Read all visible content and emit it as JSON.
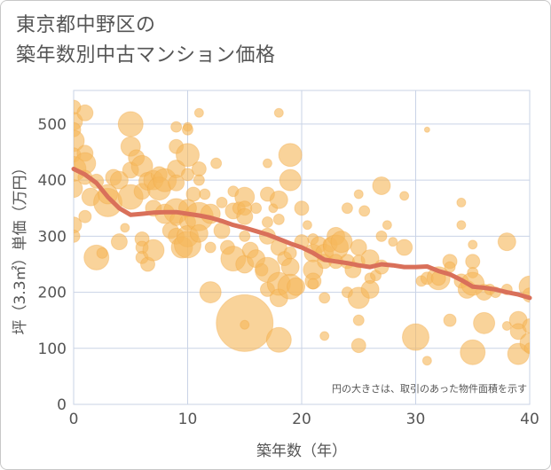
{
  "title_line1": "東京都中野区の",
  "title_line2": "築年数別中古マンション価格",
  "colors": {
    "bubble": "#f5b85c",
    "trend": "#d9705a",
    "grid": "#c9d3e6",
    "text": "#555555"
  },
  "chart_data": {
    "type": "scatter",
    "title": "東京都中野区の築年数別中古マンション価格",
    "xlabel": "築年数（年）",
    "ylabel": "坪（3.3㎡）単価（万円）",
    "xlim": [
      0,
      40
    ],
    "ylim": [
      0,
      560
    ],
    "xticks": [
      "0",
      "10",
      "20",
      "30",
      "40"
    ],
    "yticks": [
      "0",
      "100",
      "200",
      "300",
      "400",
      "500"
    ],
    "note": "円の大きさは、取引のあった物件面積を示す",
    "trend": {
      "x": [
        0,
        1,
        2,
        3,
        4,
        5,
        6,
        7,
        8,
        9,
        10,
        11,
        12,
        13,
        14,
        15,
        16,
        17,
        18,
        19,
        20,
        21,
        22,
        23,
        24,
        25,
        26,
        27,
        28,
        29,
        30,
        31,
        32,
        33,
        34,
        35,
        36,
        37,
        38,
        39,
        40
      ],
      "y": [
        420,
        410,
        395,
        370,
        350,
        338,
        340,
        342,
        343,
        343,
        340,
        337,
        333,
        327,
        320,
        315,
        309,
        303,
        295,
        287,
        280,
        270,
        258,
        255,
        252,
        248,
        245,
        250,
        248,
        245,
        245,
        246,
        238,
        232,
        222,
        210,
        208,
        205,
        200,
        196,
        190
      ]
    },
    "points": [
      {
        "x": 0,
        "y": 530,
        "r": 8
      },
      {
        "x": 0,
        "y": 505,
        "r": 10
      },
      {
        "x": 0,
        "y": 490,
        "r": 8
      },
      {
        "x": 0,
        "y": 470,
        "r": 12
      },
      {
        "x": 0,
        "y": 445,
        "r": 8
      },
      {
        "x": 0,
        "y": 420,
        "r": 14
      },
      {
        "x": 0,
        "y": 385,
        "r": 10
      },
      {
        "x": 0,
        "y": 320,
        "r": 9
      },
      {
        "x": 0,
        "y": 300,
        "r": 7
      },
      {
        "x": 1,
        "y": 520,
        "r": 9
      },
      {
        "x": 1,
        "y": 448,
        "r": 9
      },
      {
        "x": 1,
        "y": 430,
        "r": 12
      },
      {
        "x": 1,
        "y": 405,
        "r": 8
      },
      {
        "x": 1,
        "y": 335,
        "r": 7
      },
      {
        "x": 1.5,
        "y": 370,
        "r": 10
      },
      {
        "x": 2,
        "y": 398,
        "r": 8
      },
      {
        "x": 2,
        "y": 262,
        "r": 14
      },
      {
        "x": 2.5,
        "y": 270,
        "r": 6
      },
      {
        "x": 3,
        "y": 360,
        "r": 16
      },
      {
        "x": 3,
        "y": 375,
        "r": 11
      },
      {
        "x": 3.5,
        "y": 405,
        "r": 9
      },
      {
        "x": 4,
        "y": 400,
        "r": 10
      },
      {
        "x": 4,
        "y": 290,
        "r": 9
      },
      {
        "x": 4.5,
        "y": 315,
        "r": 5
      },
      {
        "x": 5,
        "y": 500,
        "r": 14
      },
      {
        "x": 5,
        "y": 460,
        "r": 11
      },
      {
        "x": 5,
        "y": 418,
        "r": 9
      },
      {
        "x": 5,
        "y": 370,
        "r": 14
      },
      {
        "x": 5.5,
        "y": 440,
        "r": 9
      },
      {
        "x": 6,
        "y": 425,
        "r": 12
      },
      {
        "x": 6,
        "y": 380,
        "r": 9
      },
      {
        "x": 6,
        "y": 295,
        "r": 8
      },
      {
        "x": 6,
        "y": 280,
        "r": 7
      },
      {
        "x": 6,
        "y": 262,
        "r": 7
      },
      {
        "x": 6.5,
        "y": 398,
        "r": 10
      },
      {
        "x": 6.5,
        "y": 250,
        "r": 8
      },
      {
        "x": 7,
        "y": 400,
        "r": 11
      },
      {
        "x": 7,
        "y": 350,
        "r": 9
      },
      {
        "x": 7,
        "y": 275,
        "r": 12
      },
      {
        "x": 7.5,
        "y": 410,
        "r": 9
      },
      {
        "x": 7.5,
        "y": 385,
        "r": 13
      },
      {
        "x": 8,
        "y": 400,
        "r": 13
      },
      {
        "x": 8,
        "y": 340,
        "r": 11
      },
      {
        "x": 8.5,
        "y": 310,
        "r": 9
      },
      {
        "x": 9,
        "y": 495,
        "r": 6
      },
      {
        "x": 9,
        "y": 460,
        "r": 8
      },
      {
        "x": 9,
        "y": 420,
        "r": 10
      },
      {
        "x": 9,
        "y": 395,
        "r": 9
      },
      {
        "x": 9,
        "y": 345,
        "r": 14
      },
      {
        "x": 9,
        "y": 330,
        "r": 7
      },
      {
        "x": 9,
        "y": 300,
        "r": 9
      },
      {
        "x": 9.5,
        "y": 280,
        "r": 12
      },
      {
        "x": 10,
        "y": 495,
        "r": 5
      },
      {
        "x": 10,
        "y": 490,
        "r": 6
      },
      {
        "x": 10,
        "y": 445,
        "r": 13
      },
      {
        "x": 10,
        "y": 410,
        "r": 7
      },
      {
        "x": 10,
        "y": 350,
        "r": 10
      },
      {
        "x": 10,
        "y": 325,
        "r": 9
      },
      {
        "x": 10,
        "y": 300,
        "r": 12
      },
      {
        "x": 10,
        "y": 285,
        "r": 15
      },
      {
        "x": 10.5,
        "y": 375,
        "r": 8
      },
      {
        "x": 11,
        "y": 520,
        "r": 5
      },
      {
        "x": 11,
        "y": 420,
        "r": 8
      },
      {
        "x": 11,
        "y": 400,
        "r": 6
      },
      {
        "x": 11,
        "y": 335,
        "r": 16
      },
      {
        "x": 11,
        "y": 305,
        "r": 10
      },
      {
        "x": 11.5,
        "y": 375,
        "r": 6
      },
      {
        "x": 12,
        "y": 340,
        "r": 11
      },
      {
        "x": 12,
        "y": 280,
        "r": 6
      },
      {
        "x": 12,
        "y": 200,
        "r": 12
      },
      {
        "x": 12.5,
        "y": 430,
        "r": 6
      },
      {
        "x": 13,
        "y": 360,
        "r": 6
      },
      {
        "x": 13,
        "y": 310,
        "r": 9
      },
      {
        "x": 13.5,
        "y": 280,
        "r": 8
      },
      {
        "x": 14,
        "y": 380,
        "r": 6
      },
      {
        "x": 14,
        "y": 345,
        "r": 9
      },
      {
        "x": 14,
        "y": 260,
        "r": 14
      },
      {
        "x": 14.5,
        "y": 350,
        "r": 7
      },
      {
        "x": 15,
        "y": 370,
        "r": 11
      },
      {
        "x": 15,
        "y": 350,
        "r": 8
      },
      {
        "x": 15,
        "y": 335,
        "r": 9
      },
      {
        "x": 15,
        "y": 300,
        "r": 6
      },
      {
        "x": 15,
        "y": 250,
        "r": 10
      },
      {
        "x": 15,
        "y": 145,
        "r": 32
      },
      {
        "x": 15,
        "y": 142,
        "r": 5
      },
      {
        "x": 15.5,
        "y": 275,
        "r": 9
      },
      {
        "x": 16,
        "y": 350,
        "r": 6
      },
      {
        "x": 16,
        "y": 260,
        "r": 10
      },
      {
        "x": 16.5,
        "y": 240,
        "r": 7
      },
      {
        "x": 17,
        "y": 430,
        "r": 5
      },
      {
        "x": 17,
        "y": 375,
        "r": 8
      },
      {
        "x": 17,
        "y": 325,
        "r": 6
      },
      {
        "x": 17,
        "y": 300,
        "r": 9
      },
      {
        "x": 17,
        "y": 240,
        "r": 14
      },
      {
        "x": 17,
        "y": 205,
        "r": 8
      },
      {
        "x": 17.5,
        "y": 350,
        "r": 5
      },
      {
        "x": 18,
        "y": 520,
        "r": 5
      },
      {
        "x": 18,
        "y": 365,
        "r": 10
      },
      {
        "x": 18,
        "y": 330,
        "r": 6
      },
      {
        "x": 18,
        "y": 280,
        "r": 9
      },
      {
        "x": 18,
        "y": 215,
        "r": 13
      },
      {
        "x": 18,
        "y": 190,
        "r": 10
      },
      {
        "x": 18,
        "y": 115,
        "r": 14
      },
      {
        "x": 18.5,
        "y": 260,
        "r": 8
      },
      {
        "x": 19,
        "y": 445,
        "r": 13
      },
      {
        "x": 19,
        "y": 400,
        "r": 12
      },
      {
        "x": 19,
        "y": 270,
        "r": 7
      },
      {
        "x": 19,
        "y": 245,
        "r": 10
      },
      {
        "x": 19,
        "y": 210,
        "r": 14
      },
      {
        "x": 19.5,
        "y": 210,
        "r": 10
      },
      {
        "x": 20,
        "y": 350,
        "r": 8
      },
      {
        "x": 20,
        "y": 290,
        "r": 8
      },
      {
        "x": 20.5,
        "y": 320,
        "r": 5
      },
      {
        "x": 21,
        "y": 295,
        "r": 6
      },
      {
        "x": 21,
        "y": 270,
        "r": 10
      },
      {
        "x": 21,
        "y": 240,
        "r": 11
      },
      {
        "x": 21,
        "y": 220,
        "r": 9
      },
      {
        "x": 21,
        "y": 215,
        "r": 6
      },
      {
        "x": 21.5,
        "y": 285,
        "r": 9
      },
      {
        "x": 22,
        "y": 270,
        "r": 10
      },
      {
        "x": 22,
        "y": 255,
        "r": 8
      },
      {
        "x": 22,
        "y": 190,
        "r": 6
      },
      {
        "x": 22,
        "y": 122,
        "r": 5
      },
      {
        "x": 22.5,
        "y": 285,
        "r": 8
      },
      {
        "x": 23,
        "y": 300,
        "r": 10
      },
      {
        "x": 23,
        "y": 280,
        "r": 14
      },
      {
        "x": 23,
        "y": 255,
        "r": 8
      },
      {
        "x": 23.5,
        "y": 290,
        "r": 12
      },
      {
        "x": 24,
        "y": 350,
        "r": 6
      },
      {
        "x": 24,
        "y": 255,
        "r": 8
      },
      {
        "x": 24,
        "y": 200,
        "r": 6
      },
      {
        "x": 24.5,
        "y": 240,
        "r": 9
      },
      {
        "x": 25,
        "y": 375,
        "r": 5
      },
      {
        "x": 25,
        "y": 280,
        "r": 9
      },
      {
        "x": 25,
        "y": 255,
        "r": 7
      },
      {
        "x": 25,
        "y": 190,
        "r": 12
      },
      {
        "x": 25,
        "y": 150,
        "r": 6
      },
      {
        "x": 25,
        "y": 105,
        "r": 8
      },
      {
        "x": 25.5,
        "y": 345,
        "r": 6
      },
      {
        "x": 26,
        "y": 260,
        "r": 10
      },
      {
        "x": 26,
        "y": 225,
        "r": 6
      },
      {
        "x": 26,
        "y": 205,
        "r": 10
      },
      {
        "x": 26.5,
        "y": 230,
        "r": 6
      },
      {
        "x": 27,
        "y": 390,
        "r": 10
      },
      {
        "x": 27,
        "y": 300,
        "r": 6
      },
      {
        "x": 27,
        "y": 245,
        "r": 8
      },
      {
        "x": 27.5,
        "y": 320,
        "r": 5
      },
      {
        "x": 28,
        "y": 290,
        "r": 5
      },
      {
        "x": 29,
        "y": 372,
        "r": 5
      },
      {
        "x": 29,
        "y": 280,
        "r": 9
      },
      {
        "x": 30,
        "y": 120,
        "r": 15
      },
      {
        "x": 30.5,
        "y": 220,
        "r": 6
      },
      {
        "x": 31,
        "y": 490,
        "r": 3
      },
      {
        "x": 31,
        "y": 225,
        "r": 7
      },
      {
        "x": 31,
        "y": 78,
        "r": 5
      },
      {
        "x": 32,
        "y": 225,
        "r": 13
      },
      {
        "x": 32,
        "y": 225,
        "r": 8
      },
      {
        "x": 33,
        "y": 255,
        "r": 8
      },
      {
        "x": 33,
        "y": 245,
        "r": 6
      },
      {
        "x": 33,
        "y": 150,
        "r": 7
      },
      {
        "x": 34,
        "y": 360,
        "r": 5
      },
      {
        "x": 34,
        "y": 320,
        "r": 5
      },
      {
        "x": 34,
        "y": 220,
        "r": 8
      },
      {
        "x": 34.5,
        "y": 205,
        "r": 10
      },
      {
        "x": 35,
        "y": 285,
        "r": 5
      },
      {
        "x": 35,
        "y": 255,
        "r": 8
      },
      {
        "x": 35,
        "y": 235,
        "r": 6
      },
      {
        "x": 35,
        "y": 215,
        "r": 13
      },
      {
        "x": 35,
        "y": 93,
        "r": 14
      },
      {
        "x": 36,
        "y": 200,
        "r": 9
      },
      {
        "x": 36,
        "y": 145,
        "r": 12
      },
      {
        "x": 36.5,
        "y": 205,
        "r": 6
      },
      {
        "x": 37,
        "y": 200,
        "r": 6
      },
      {
        "x": 38,
        "y": 290,
        "r": 10
      },
      {
        "x": 38,
        "y": 205,
        "r": 6
      },
      {
        "x": 38,
        "y": 140,
        "r": 5
      },
      {
        "x": 39,
        "y": 150,
        "r": 10
      },
      {
        "x": 39,
        "y": 130,
        "r": 9
      },
      {
        "x": 39,
        "y": 90,
        "r": 12
      },
      {
        "x": 40,
        "y": 210,
        "r": 12
      },
      {
        "x": 40,
        "y": 195,
        "r": 8
      },
      {
        "x": 40,
        "y": 140,
        "r": 8
      },
      {
        "x": 40,
        "y": 110,
        "r": 11
      },
      {
        "x": 40,
        "y": 100,
        "r": 6
      }
    ]
  }
}
